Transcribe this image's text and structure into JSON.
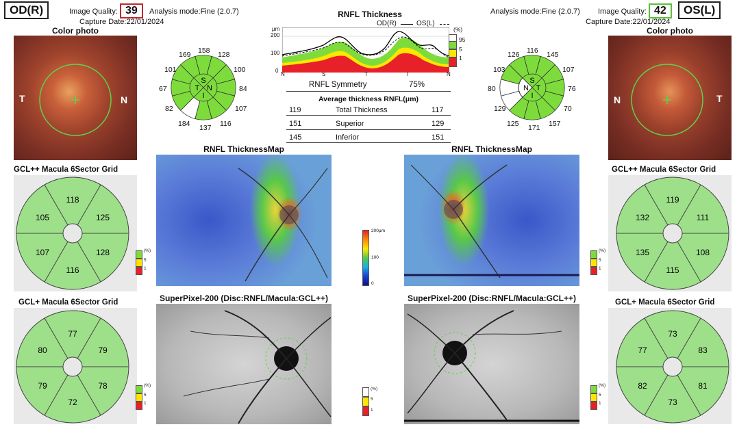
{
  "od": {
    "eye_label": "OD(R)",
    "quality_label": "Image Quality:",
    "quality_value": "39",
    "analysis_mode": "Analysis mode:Fine (2.0.7)",
    "capture_date": "Capture Date:22/01/2024",
    "color_photo_label": "Color photo",
    "photo_t": "T",
    "photo_n": "N",
    "clock": [
      "158",
      "128",
      "100",
      "84",
      "107",
      "116",
      "137",
      "184",
      "82",
      "67",
      "101",
      "169"
    ],
    "quad": [
      "S",
      "N",
      "I",
      "T"
    ],
    "gclpp_title": "GCL++ Macula 6Sector Grid",
    "gclpp": [
      "118",
      "125",
      "128",
      "116",
      "107",
      "105"
    ],
    "gclp_title": "GCL+ Macula 6Sector Grid",
    "gclp": [
      "77",
      "79",
      "78",
      "72",
      "79",
      "80"
    ]
  },
  "os": {
    "eye_label": "OS(L)",
    "quality_label": "Image Quality:",
    "quality_value": "42",
    "analysis_mode": "Analysis mode:Fine (2.0.7)",
    "capture_date": "Capture Date:22/01/2024",
    "color_photo_label": "Color photo",
    "photo_n": "N",
    "photo_t": "T",
    "clock": [
      "116",
      "145",
      "107",
      "76",
      "70",
      "157",
      "171",
      "125",
      "129",
      "80",
      "103",
      "126"
    ],
    "quad": [
      "S",
      "T",
      "I",
      "N"
    ],
    "gclpp_title": "GCL++ Macula 6Sector Grid",
    "gclpp": [
      "119",
      "111",
      "108",
      "115",
      "135",
      "132"
    ],
    "gclp_title": "GCL+ Macula 6Sector Grid",
    "gclp": [
      "73",
      "83",
      "81",
      "73",
      "82",
      "77"
    ]
  },
  "rnfl": {
    "title": "RNFL Thickness",
    "legend_od": "OD(R)",
    "legend_os": "OS(L)",
    "unit": "μm",
    "y_ticks": [
      "200",
      "100",
      "0"
    ],
    "x_ticks": [
      "N",
      "S",
      "T",
      "I",
      "N"
    ],
    "pct_label": "(%)",
    "pct_ticks": [
      "95",
      "5",
      "1"
    ],
    "symmetry_label": "RNFL Symmetry",
    "symmetry_value": "75%",
    "avg_title": "Average thickness RNFL(μm)",
    "rows": [
      {
        "od": "119",
        "label": "Total Thickness",
        "os": "117"
      },
      {
        "od": "151",
        "label": "Superior",
        "os": "129"
      },
      {
        "od": "145",
        "label": "Inferior",
        "os": "151"
      }
    ]
  },
  "maps": {
    "thickness_title": "RNFL ThicknessMap",
    "superpixel_title": "SuperPixel-200 (Disc:RNFL/Macula:GCL++)",
    "scale_top": "200μm",
    "scale_mid": "100",
    "scale_bot": "0"
  },
  "legend": {
    "pct": "(%)",
    "t5": "5",
    "t1": "1"
  },
  "colors": {
    "green": "#7ddc3c",
    "white": "#ffffff",
    "yellow": "#ffe600",
    "red": "#e8202a",
    "grid_green": "#9ee08a"
  }
}
